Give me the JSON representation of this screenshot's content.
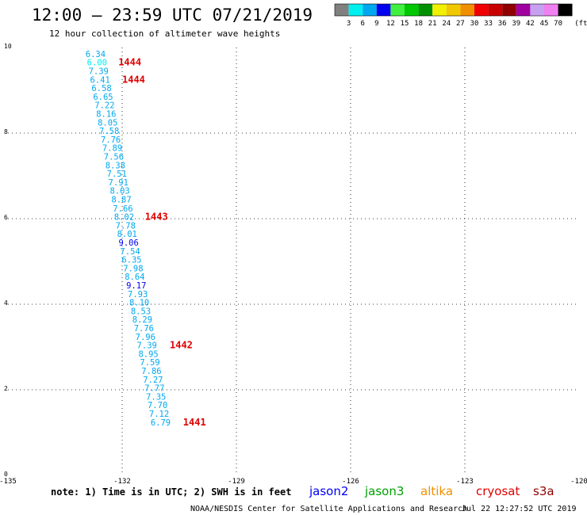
{
  "header": {
    "title": "12:00 – 23:59 UTC 07/21/2019",
    "subtitle": "12 hour collection of altimeter wave heights"
  },
  "colorbar": {
    "colors": [
      "#808080",
      "#00f0f0",
      "#00a8f0",
      "#0000f0",
      "#40f040",
      "#00c800",
      "#009000",
      "#f0f000",
      "#f0c800",
      "#f09000",
      "#f00000",
      "#c80000",
      "#900000",
      "#a000a0",
      "#c8a0f0",
      "#f080f0",
      "#000000"
    ],
    "labels": [
      "3",
      "6",
      "9",
      "12",
      "15",
      "18",
      "21",
      "24",
      "27",
      "30",
      "33",
      "36",
      "39",
      "42",
      "45",
      "70"
    ],
    "unit": "(ft)"
  },
  "chart_data": {
    "type": "scatter",
    "title": "12:00 – 23:59 UTC 07/21/2019",
    "subtitle": "12 hour collection of altimeter wave heights",
    "xlim": [
      -135,
      -120
    ],
    "ylim": [
      0,
      10
    ],
    "x_ticks": [
      "-135",
      "-132",
      "-129",
      "-126",
      "-123",
      "-120"
    ],
    "x_tick_values": [
      -135,
      -132,
      -129,
      -126,
      -123,
      -120
    ],
    "y_ticks": [
      "0",
      "2",
      "4",
      "6",
      "8",
      "10"
    ],
    "y_tick_values": [
      0,
      2,
      4,
      6,
      8,
      10
    ],
    "grid": true,
    "units": "feet",
    "series": [
      {
        "name": "jason3",
        "color": "#00a8f0",
        "points": [
          {
            "x": -132.7,
            "y": 9.78,
            "label": "6.34",
            "color": "#00a8f0"
          },
          {
            "x": -132.66,
            "y": 9.58,
            "label": "6.00",
            "color": "#00f0f0"
          },
          {
            "x": -132.62,
            "y": 9.38,
            "label": "7.39",
            "color": "#00a8f0"
          },
          {
            "x": -132.58,
            "y": 9.18,
            "label": "6.41",
            "color": "#00a8f0"
          },
          {
            "x": -132.54,
            "y": 8.98,
            "label": "6.58",
            "color": "#00a8f0"
          },
          {
            "x": -132.5,
            "y": 8.78,
            "label": "6.65",
            "color": "#00a8f0"
          },
          {
            "x": -132.46,
            "y": 8.58,
            "label": "7.22",
            "color": "#00a8f0"
          },
          {
            "x": -132.42,
            "y": 8.38,
            "label": "8.16",
            "color": "#00a8f0"
          },
          {
            "x": -132.38,
            "y": 8.18,
            "label": "8.05",
            "color": "#00a8f0"
          },
          {
            "x": -132.34,
            "y": 7.98,
            "label": "7.58",
            "color": "#00a8f0"
          },
          {
            "x": -132.3,
            "y": 7.78,
            "label": "7.76",
            "color": "#00a8f0"
          },
          {
            "x": -132.26,
            "y": 7.58,
            "label": "7.89",
            "color": "#00a8f0"
          },
          {
            "x": -132.22,
            "y": 7.38,
            "label": "7.56",
            "color": "#00a8f0"
          },
          {
            "x": -132.18,
            "y": 7.18,
            "label": "8.38",
            "color": "#00a8f0"
          },
          {
            "x": -132.14,
            "y": 6.98,
            "label": "7.51",
            "color": "#00a8f0"
          },
          {
            "x": -132.1,
            "y": 6.78,
            "label": "7.91",
            "color": "#00a8f0"
          },
          {
            "x": -132.06,
            "y": 6.58,
            "label": "8.03",
            "color": "#00a8f0"
          },
          {
            "x": -132.02,
            "y": 6.38,
            "label": "8.87",
            "color": "#00a8f0"
          },
          {
            "x": -131.98,
            "y": 6.17,
            "label": "7.66",
            "color": "#00a8f0"
          },
          {
            "x": -131.95,
            "y": 5.97,
            "label": "8.02",
            "color": "#00a8f0"
          },
          {
            "x": -131.91,
            "y": 5.77,
            "label": "7.78",
            "color": "#00a8f0"
          },
          {
            "x": -131.87,
            "y": 5.57,
            "label": "8.01",
            "color": "#00a8f0"
          },
          {
            "x": -131.83,
            "y": 5.37,
            "label": "9.06",
            "color": "#0000f0"
          },
          {
            "x": -131.79,
            "y": 5.17,
            "label": "7.54",
            "color": "#00a8f0"
          },
          {
            "x": -131.75,
            "y": 4.97,
            "label": "6.35",
            "color": "#00a8f0"
          },
          {
            "x": -131.71,
            "y": 4.77,
            "label": "7.98",
            "color": "#00a8f0"
          },
          {
            "x": -131.67,
            "y": 4.57,
            "label": "8.64",
            "color": "#00a8f0"
          },
          {
            "x": -131.63,
            "y": 4.37,
            "label": "9.17",
            "color": "#0000f0"
          },
          {
            "x": -131.59,
            "y": 4.17,
            "label": "7.93",
            "color": "#00a8f0"
          },
          {
            "x": -131.55,
            "y": 3.97,
            "label": "8.10",
            "color": "#00a8f0"
          },
          {
            "x": -131.51,
            "y": 3.77,
            "label": "8.53",
            "color": "#00a8f0"
          },
          {
            "x": -131.47,
            "y": 3.57,
            "label": "8.29",
            "color": "#00a8f0"
          },
          {
            "x": -131.43,
            "y": 3.37,
            "label": "7.76",
            "color": "#00a8f0"
          },
          {
            "x": -131.39,
            "y": 3.17,
            "label": "7.96",
            "color": "#00a8f0"
          },
          {
            "x": -131.35,
            "y": 2.97,
            "label": "7.39",
            "color": "#00a8f0"
          },
          {
            "x": -131.31,
            "y": 2.77,
            "label": "8.95",
            "color": "#00a8f0"
          },
          {
            "x": -131.27,
            "y": 2.57,
            "label": "7.59",
            "color": "#00a8f0"
          },
          {
            "x": -131.23,
            "y": 2.37,
            "label": "7.86",
            "color": "#00a8f0"
          },
          {
            "x": -131.19,
            "y": 2.17,
            "label": "7.27",
            "color": "#00a8f0"
          },
          {
            "x": -131.15,
            "y": 1.97,
            "label": "7.77",
            "color": "#00a8f0"
          },
          {
            "x": -131.11,
            "y": 1.77,
            "label": "7.35",
            "color": "#00a8f0"
          },
          {
            "x": -131.07,
            "y": 1.57,
            "label": "7.70",
            "color": "#00a8f0"
          },
          {
            "x": -131.03,
            "y": 1.37,
            "label": "7.12",
            "color": "#00a8f0"
          },
          {
            "x": -130.99,
            "y": 1.17,
            "label": "6.79",
            "color": "#00a8f0"
          }
        ]
      }
    ],
    "annotations": [
      {
        "text": "1444",
        "x": -132.1,
        "y": 9.58,
        "color": "#e00000"
      },
      {
        "text": "1444",
        "x": -132.0,
        "y": 9.18,
        "color": "#e00000"
      },
      {
        "text": "1443",
        "x": -131.4,
        "y": 5.97,
        "color": "#e00000"
      },
      {
        "text": "1442",
        "x": -130.75,
        "y": 2.97,
        "color": "#e00000"
      },
      {
        "text": "1441",
        "x": -130.4,
        "y": 1.17,
        "color": "#e00000"
      }
    ]
  },
  "footer": {
    "note": "note: 1) Time is in UTC; 2) SWH is in feet",
    "satellites": [
      {
        "name": "jason2",
        "color": "#0000f0"
      },
      {
        "name": "jason3",
        "color": "#00a000"
      },
      {
        "name": "altika",
        "color": "#f09000"
      },
      {
        "name": "cryosat",
        "color": "#e00000"
      },
      {
        "name": "s3a",
        "color": "#900000"
      }
    ],
    "credit": "NOAA/NESDIS Center for Satellite Applications and Research",
    "timestamp": "Jul 22 12:27:52 UTC 2019"
  }
}
